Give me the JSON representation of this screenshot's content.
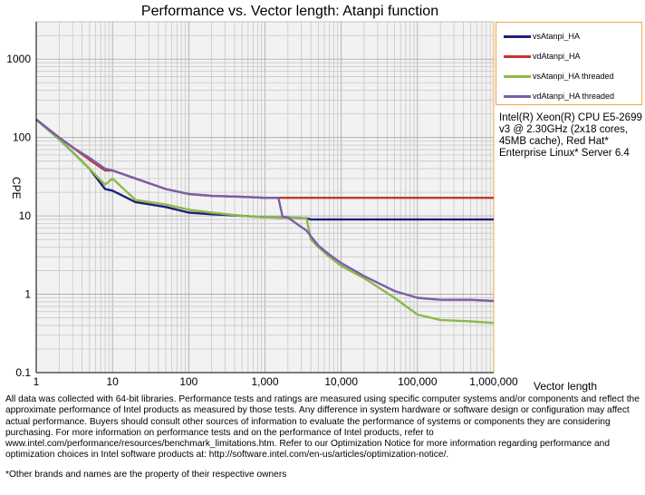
{
  "chart_data": {
    "type": "line",
    "title": "Performance vs. Vector length: Atanpi function",
    "xlabel": "Vector length",
    "ylabel": "CPE",
    "x_scale": "log",
    "y_scale": "log",
    "xlim": [
      1,
      1000000
    ],
    "ylim": [
      0.1,
      3000
    ],
    "grid": true,
    "legend_position": "right",
    "x_ticks": [
      "1",
      "10",
      "100",
      "1,000",
      "10,000",
      "100,000",
      "1,000,000"
    ],
    "y_ticks": [
      "0.1",
      "1",
      "10",
      "100",
      "1000"
    ],
    "x": [
      1,
      2,
      3,
      5,
      8,
      10,
      20,
      50,
      100,
      200,
      500,
      1000,
      1500,
      1700,
      2000,
      3500,
      4000,
      5000,
      7000,
      10000,
      20000,
      50000,
      100000,
      200000,
      500000,
      1000000
    ],
    "series": [
      {
        "name": "vsAtanpi_HA",
        "color": "#1f1f7a",
        "values": [
          170,
          95,
          65,
          40,
          22,
          21,
          15,
          13,
          11,
          10.5,
          10,
          9.6,
          9.5,
          9.5,
          9.5,
          9.3,
          9.0,
          9.0,
          9.0,
          9.0,
          9.0,
          9.0,
          9.0,
          9.0,
          9.0,
          9.0
        ]
      },
      {
        "name": "vdAtanpi_HA",
        "color": "#c0392b",
        "values": [
          170,
          100,
          75,
          52,
          38,
          38,
          30,
          22,
          19,
          18,
          17.5,
          17,
          17,
          17,
          17,
          17,
          17,
          17,
          17,
          17,
          17,
          17,
          17,
          17,
          17,
          17
        ]
      },
      {
        "name": "vsAtanpi_HA threaded",
        "color": "#8db94a",
        "values": [
          170,
          95,
          65,
          40,
          25,
          30,
          16,
          14,
          12,
          11,
          10,
          9.6,
          9.5,
          9.5,
          9.5,
          9.3,
          5,
          4,
          3,
          2.3,
          1.6,
          0.9,
          0.55,
          0.47,
          0.45,
          0.43
        ]
      },
      {
        "name": "vdAtanpi_HA threaded",
        "color": "#7b5ea7",
        "values": [
          170,
          100,
          75,
          55,
          40,
          38,
          30,
          22,
          19,
          18,
          17.5,
          17,
          17,
          9.8,
          9.5,
          6.5,
          5.5,
          4.2,
          3.2,
          2.5,
          1.7,
          1.1,
          0.9,
          0.85,
          0.85,
          0.82
        ]
      }
    ]
  },
  "legend": {
    "items": [
      "vsAtanpi_HA",
      "vdAtanpi_HA",
      "vsAtanpi_HA threaded",
      "vdAtanpi_HA threaded"
    ]
  },
  "sysinfo": "Intel(R) Xeon(R) CPU E5-2699 v3 @ 2.30GHz (2x18 cores, 45MB cache), Red Hat* Enterprise Linux* Server 6.4",
  "footer": "All data was collected with 64-bit libraries. Performance tests and ratings are measured using specific computer systems and/or components and reflect the approximate performance of Intel products as measured by those tests. Any difference in system hardware or software design or configuration may affect actual performance. Buyers should consult other sources of information to evaluate the performance of systems or components they are considering purchasing. For more information on performance tests and on the performance of Intel products, refer to www.intel.com/performance/resources/benchmark_limitations.htm. Refer to our Optimization Notice for more information regarding performance and optimization choices in Intel software products at: http://software.intel.com/en-us/articles/optimization-notice/.",
  "trademark": "*Other brands and names are the property of their respective owners"
}
